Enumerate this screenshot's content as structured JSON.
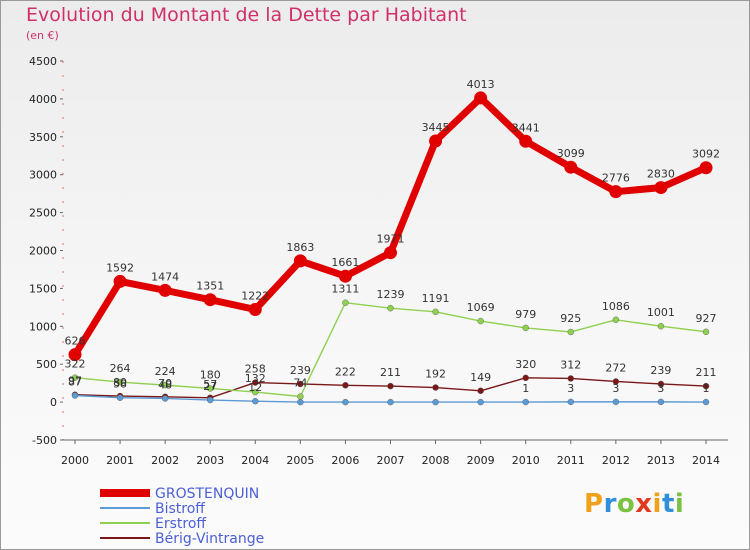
{
  "title": "Evolution du Montant de la Dette par Habitant",
  "unit_label": "(en €)",
  "logo": {
    "text": "Proxiti",
    "colors": [
      "#f0a11b",
      "#2f8fd8",
      "#7cc242",
      "#e0391e",
      "#f0a11b",
      "#2f8fd8",
      "#7cc242"
    ]
  },
  "chart_data": {
    "type": "line",
    "x": [
      2000,
      2001,
      2002,
      2003,
      2004,
      2005,
      2006,
      2007,
      2008,
      2009,
      2010,
      2011,
      2012,
      2013,
      2014
    ],
    "ylim": [
      -500,
      4500
    ],
    "yticks": [
      -500,
      0,
      500,
      1000,
      1500,
      2000,
      2500,
      3000,
      3500,
      4000,
      4500
    ],
    "grid": false,
    "legend_position": "bottom-left",
    "series": [
      {
        "name": "GROSTENQUIN",
        "color": "#e00000",
        "values": [
          626,
          1592,
          1474,
          1351,
          1222,
          1863,
          1661,
          1971,
          3445,
          4013,
          3441,
          3099,
          2776,
          2830,
          3092
        ]
      },
      {
        "name": "Bistroff",
        "color": "#5b9bd5",
        "values": [
          87,
          58,
          48,
          27,
          12,
          0,
          0,
          0,
          0,
          0,
          1,
          3,
          3,
          3,
          1
        ]
      },
      {
        "name": "Erstroff",
        "color": "#8fd050",
        "values": [
          322,
          264,
          224,
          180,
          132,
          74,
          1311,
          1239,
          1191,
          1069,
          979,
          925,
          1086,
          1001,
          927
        ]
      },
      {
        "name": "Bérig-Vintrange",
        "color": "#7a1818",
        "values": [
          97,
          80,
          70,
          57,
          258,
          239,
          222,
          211,
          192,
          149,
          320,
          312,
          272,
          239,
          211
        ]
      }
    ],
    "data_labels": [
      {
        "series": 0,
        "labels": [
          "626",
          "1592",
          "1474",
          "1351",
          "1222",
          "1863",
          "1661",
          "1971",
          "3445",
          "4013",
          "3441",
          "3099",
          "2776",
          "2830",
          "3092"
        ]
      },
      {
        "series": 1,
        "labels": [
          "87",
          "58",
          "48",
          "27",
          "12",
          "",
          "",
          "",
          "",
          "",
          "1",
          "3",
          "3",
          "3",
          "1"
        ]
      },
      {
        "series": 2,
        "labels": [
          "322",
          "264",
          "224",
          "180",
          "132",
          "74",
          "1311",
          "1239",
          "1191",
          "1069",
          "979",
          "925",
          "1086",
          "1001",
          "927"
        ]
      },
      {
        "series": 3,
        "labels": [
          "97",
          "80",
          "70",
          "57",
          "258",
          "239",
          "222",
          "211",
          "192",
          "149",
          "320",
          "312",
          "272",
          "239",
          "211"
        ]
      }
    ]
  }
}
